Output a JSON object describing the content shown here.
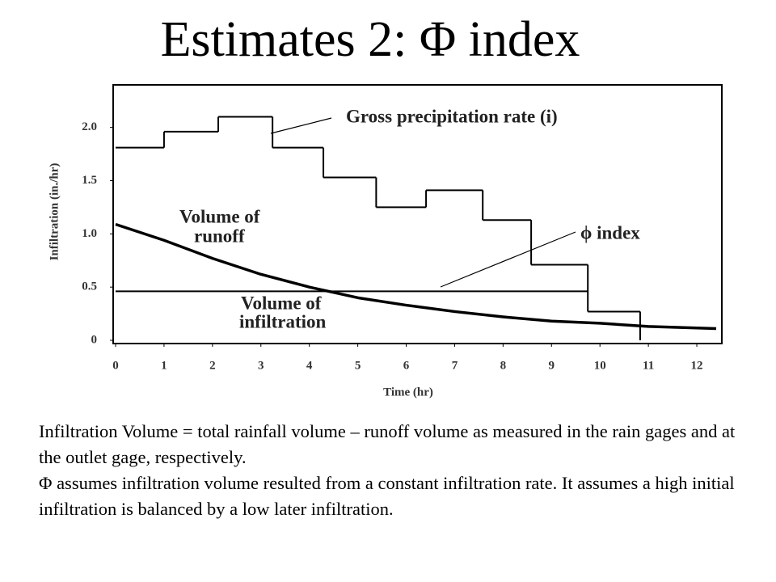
{
  "title": "Estimates 2: Φ index",
  "chart_data": {
    "type": "step",
    "xlabel": "Time (hr)",
    "ylabel": "Infiltration (in./hr)",
    "xlim": [
      0,
      12.5
    ],
    "ylim": [
      0,
      2.4
    ],
    "xticks": [
      0,
      1,
      2,
      3,
      4,
      5,
      6,
      7,
      8,
      9,
      10,
      11,
      12
    ],
    "yticks": [
      0,
      0.5,
      {
        "value": 1,
        "label": "1.0"
      },
      1.5,
      {
        "value": 2,
        "label": "2.0"
      }
    ],
    "color": "#000000",
    "precipitation": {
      "bins": [
        0,
        1,
        2.12,
        3.24,
        4.29,
        5.38,
        6.41,
        7.58,
        8.58,
        9.75,
        10.83
      ],
      "values": [
        1.81,
        1.96,
        2.1,
        1.81,
        1.53,
        1.25,
        1.41,
        1.13,
        0.71,
        0.27
      ]
    },
    "infiltration": {
      "x": [
        0,
        1,
        2,
        3,
        4,
        5,
        6,
        7,
        8,
        9,
        10,
        11,
        12.4
      ],
      "values": [
        1.09,
        0.94,
        0.77,
        0.62,
        0.5,
        0.4,
        0.33,
        0.27,
        0.22,
        0.18,
        0.16,
        0.13,
        0.11
      ]
    },
    "phi_index": {
      "value": 0.46,
      "x": [
        0,
        9.75
      ]
    },
    "annotations": [
      "Gross precipitation rate (i)",
      "Volume of",
      "runoff",
      "ϕ index",
      "Volume of",
      "infiltration"
    ]
  },
  "body": [
    "Infiltration Volume = total rainfall volume – runoff  volume as measured in the rain gages and at the outlet gage, respectively.",
    "Φ assumes infiltration volume resulted from a constant infiltration rate. It assumes a high initial infiltration is balanced by a low later infiltration."
  ]
}
